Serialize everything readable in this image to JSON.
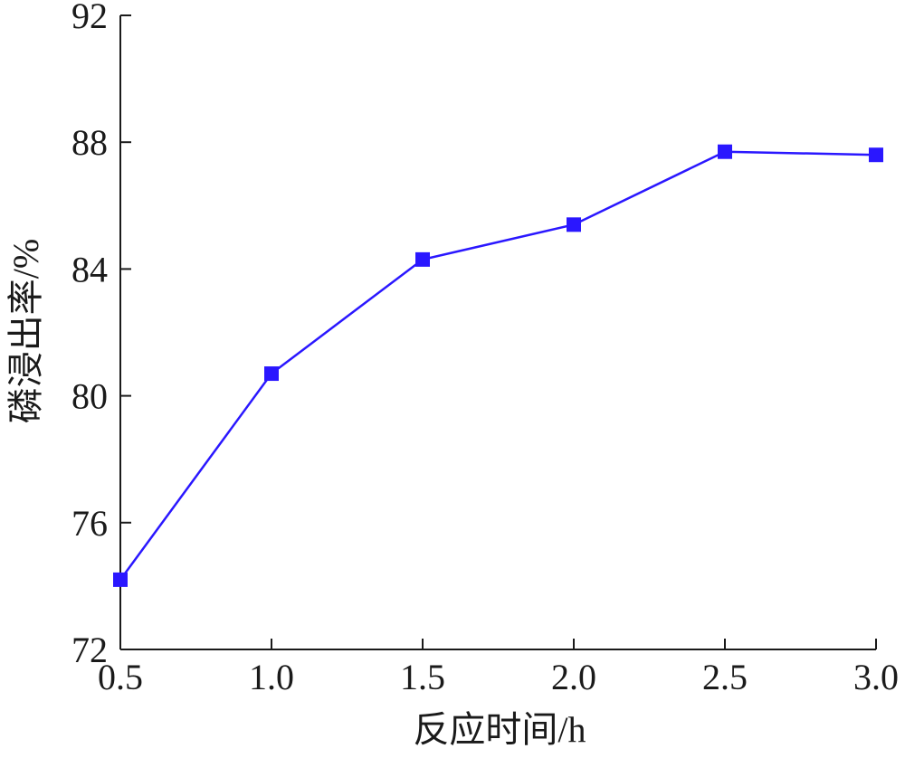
{
  "chart_data": {
    "type": "line",
    "title": "",
    "xlabel": "反应时间/h",
    "ylabel": "磷浸出率/%",
    "x": [
      0.5,
      1.0,
      1.5,
      2.0,
      2.5,
      3.0
    ],
    "x_tick_labels": [
      "0.5",
      "1.0",
      "1.5",
      "2.0",
      "2.5",
      "3.0"
    ],
    "y_ticks": [
      72,
      76,
      80,
      84,
      88,
      92
    ],
    "y_tick_labels": [
      "72",
      "76",
      "80",
      "84",
      "88",
      "92"
    ],
    "xlim": [
      0.5,
      3.0
    ],
    "ylim": [
      72,
      92
    ],
    "grid": false,
    "legend": "none",
    "series": [
      {
        "values": [
          74.2,
          80.7,
          84.3,
          85.4,
          87.7,
          87.6
        ],
        "color": "#2a17ff",
        "marker": "square"
      }
    ]
  }
}
